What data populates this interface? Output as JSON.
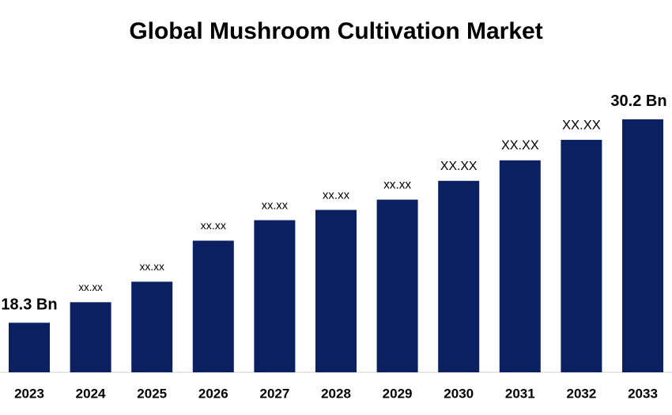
{
  "chart_data": {
    "type": "bar",
    "title": "Global Mushroom Cultivation Market",
    "categories": [
      "2023",
      "2024",
      "2025",
      "2026",
      "2027",
      "2028",
      "2029",
      "2030",
      "2031",
      "2032",
      "2033"
    ],
    "values": [
      18.3,
      19.5,
      20.7,
      23.1,
      24.3,
      24.9,
      25.5,
      26.6,
      27.8,
      29.0,
      30.2
    ],
    "value_labels": [
      "18.3 Bn",
      "xx.xx",
      "xx.xx",
      "xx.xx",
      "xx.xx",
      "xx.xx",
      "xx.xx",
      "XX.XX",
      "XX.XX",
      "XX.XX",
      "30.2 Bn"
    ],
    "color": "#0a2060",
    "ylim": [
      15.4,
      32
    ]
  }
}
